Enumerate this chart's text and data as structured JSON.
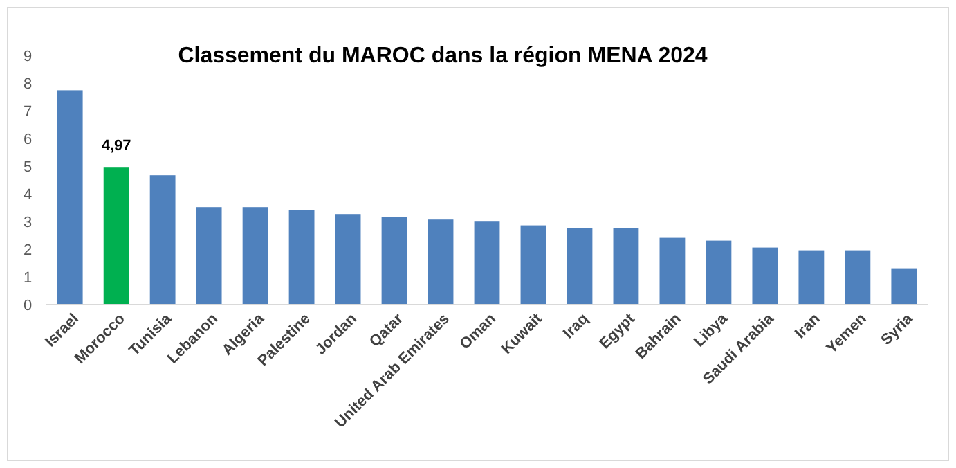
{
  "chart_data": {
    "type": "bar",
    "title": "Classement du MAROC dans la région MENA 2024",
    "categories": [
      "Israel",
      "Morocco",
      "Tunisia",
      "Lebanon",
      "Algeria",
      "Palestine",
      "Jordan",
      "Qatar",
      "United Arab Emirates",
      "Oman",
      "Kuwait",
      "Iraq",
      "Egypt",
      "Bahrain",
      "Libya",
      "Saudi Arabia",
      "Iran",
      "Yemen",
      "Syria"
    ],
    "values": [
      7.74,
      4.97,
      4.67,
      3.52,
      3.52,
      3.42,
      3.27,
      3.17,
      3.07,
      3.02,
      2.86,
      2.76,
      2.76,
      2.41,
      2.31,
      2.06,
      1.96,
      1.96,
      1.31
    ],
    "colors": [
      "#4f81bd",
      "#00b050",
      "#4f81bd",
      "#4f81bd",
      "#4f81bd",
      "#4f81bd",
      "#4f81bd",
      "#4f81bd",
      "#4f81bd",
      "#4f81bd",
      "#4f81bd",
      "#4f81bd",
      "#4f81bd",
      "#4f81bd",
      "#4f81bd",
      "#4f81bd",
      "#4f81bd",
      "#4f81bd",
      "#4f81bd"
    ],
    "value_labels": [
      null,
      "4,97",
      null,
      null,
      null,
      null,
      null,
      null,
      null,
      null,
      null,
      null,
      null,
      null,
      null,
      null,
      null,
      null,
      null
    ],
    "ylim": [
      0,
      9
    ],
    "yticks": [
      0,
      1,
      2,
      3,
      4,
      5,
      6,
      7,
      8,
      9
    ],
    "grid": false
  }
}
